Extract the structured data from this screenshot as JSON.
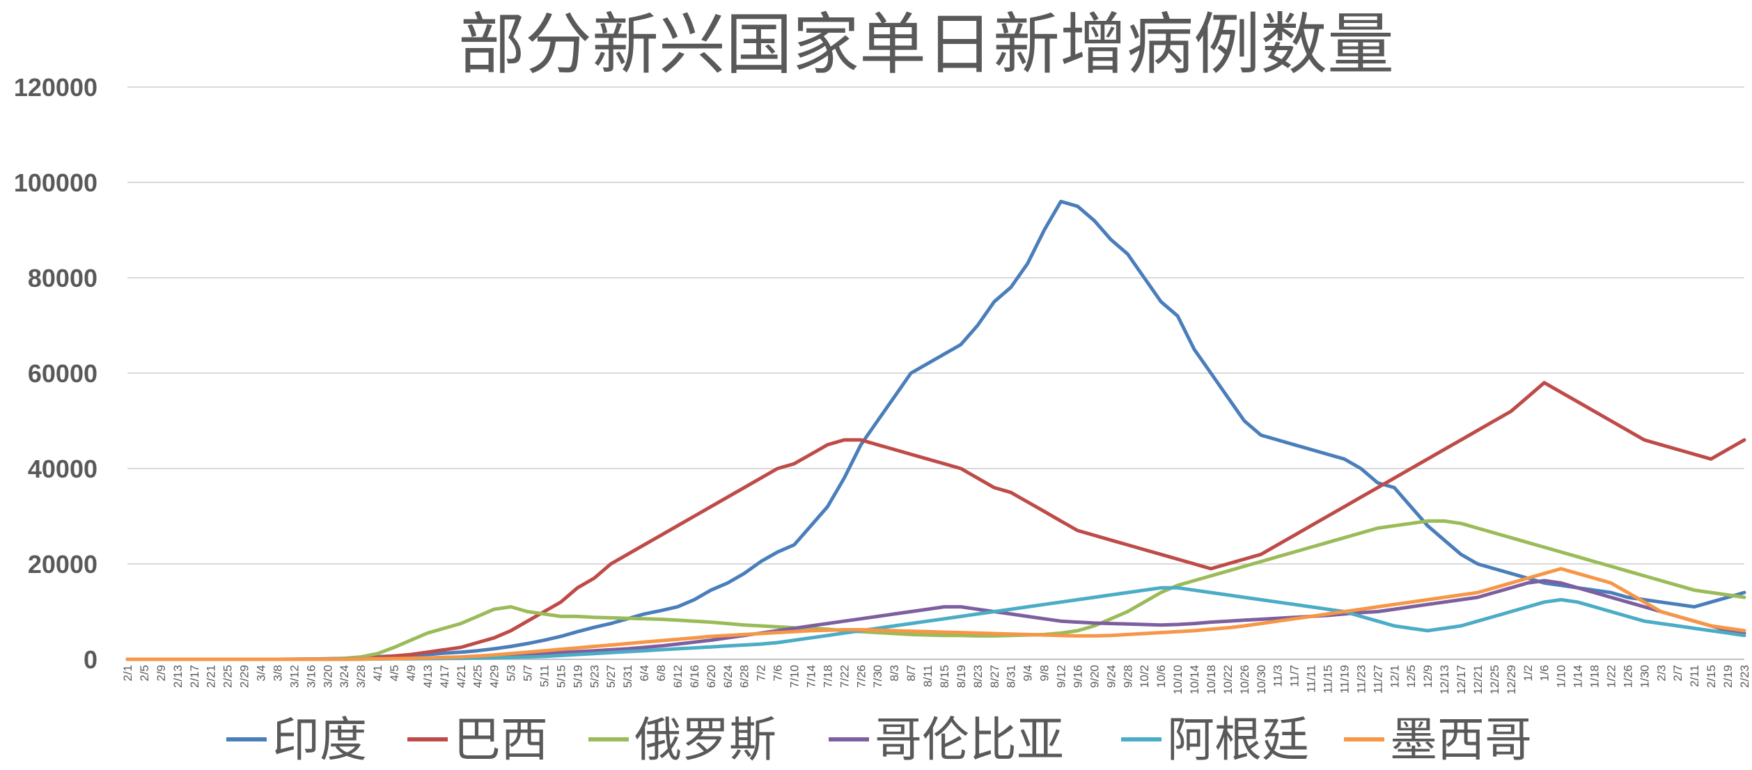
{
  "chart_data": {
    "type": "line",
    "title": "部分新兴国家单日新增病例数量",
    "xlabel": "",
    "ylabel": "",
    "ylim": [
      0,
      120000
    ],
    "y_ticks": [
      "0",
      "20000",
      "40000",
      "60000",
      "80000",
      "100000",
      "120000"
    ],
    "grid": true,
    "legend_position": "bottom",
    "x": [
      "2/1",
      "2/5",
      "2/9",
      "2/13",
      "2/17",
      "2/21",
      "2/25",
      "2/29",
      "3/4",
      "3/8",
      "3/12",
      "3/16",
      "3/20",
      "3/24",
      "3/28",
      "4/1",
      "4/5",
      "4/9",
      "4/13",
      "4/17",
      "4/21",
      "4/25",
      "4/29",
      "5/3",
      "5/7",
      "5/11",
      "5/15",
      "5/19",
      "5/23",
      "5/27",
      "5/31",
      "6/4",
      "6/8",
      "6/12",
      "6/16",
      "6/20",
      "6/24",
      "6/28",
      "7/2",
      "7/6",
      "7/10",
      "7/14",
      "7/18",
      "7/22",
      "7/26",
      "7/30",
      "8/3",
      "8/7",
      "8/11",
      "8/15",
      "8/19",
      "8/23",
      "8/27",
      "8/31",
      "9/4",
      "9/8",
      "9/12",
      "9/16",
      "9/20",
      "9/24",
      "9/28",
      "10/2",
      "10/6",
      "10/10",
      "10/14",
      "10/18",
      "10/22",
      "10/26",
      "10/30",
      "11/3",
      "11/7",
      "11/11",
      "11/15",
      "11/19",
      "11/23",
      "11/27",
      "12/1",
      "12/5",
      "12/9",
      "12/13",
      "12/17",
      "12/21",
      "12/25",
      "12/29",
      "1/2",
      "1/6",
      "1/10",
      "1/14",
      "1/18",
      "1/22",
      "1/26",
      "1/30",
      "2/3",
      "2/7",
      "2/11",
      "2/15",
      "2/19",
      "2/23"
    ],
    "series": [
      {
        "name": "印度",
        "color": "#4a7ebb",
        "values": [
          0,
          0,
          0,
          0,
          0,
          0,
          0,
          0,
          0,
          0,
          10,
          50,
          100,
          200,
          400,
          550,
          700,
          800,
          1000,
          1300,
          1500,
          1800,
          2200,
          2700,
          3300,
          4000,
          4800,
          5800,
          6700,
          7500,
          8500,
          9500,
          10200,
          11000,
          12500,
          14500,
          16000,
          18000,
          20500,
          22500,
          24000,
          28000,
          32000,
          38000,
          45000,
          50000,
          55000,
          60000,
          62000,
          64000,
          66000,
          70000,
          75000,
          78000,
          83000,
          90000,
          96000,
          95000,
          92000,
          88000,
          85000,
          80000,
          75000,
          72000,
          65000,
          60000,
          55000,
          50000,
          47000,
          46000,
          45000,
          44000,
          43000,
          42000,
          40000,
          37000,
          36000,
          32000,
          28000,
          25000,
          22000,
          20000,
          19000,
          18000,
          17000,
          16000,
          15500,
          15000,
          14500,
          14000,
          13000,
          12500,
          12000,
          11500,
          11000,
          12000,
          13000,
          14000
        ]
      },
      {
        "name": "巴西",
        "color": "#be4b48",
        "values": [
          0,
          0,
          0,
          0,
          0,
          0,
          0,
          0,
          0,
          0,
          10,
          30,
          80,
          150,
          250,
          400,
          700,
          1000,
          1500,
          2000,
          2500,
          3500,
          4500,
          6000,
          8000,
          10000,
          12000,
          15000,
          17000,
          20000,
          22000,
          24000,
          26000,
          28000,
          30000,
          32000,
          34000,
          36000,
          38000,
          40000,
          41000,
          43000,
          45000,
          46000,
          46000,
          45000,
          44000,
          43000,
          42000,
          41000,
          40000,
          38000,
          36000,
          35000,
          33000,
          31000,
          29000,
          27000,
          26000,
          25000,
          24000,
          23000,
          22000,
          21000,
          20000,
          19000,
          20000,
          21000,
          22000,
          24000,
          26000,
          28000,
          30000,
          32000,
          34000,
          36000,
          38000,
          40000,
          42000,
          44000,
          46000,
          48000,
          50000,
          52000,
          55000,
          58000,
          56000,
          54000,
          52000,
          50000,
          48000,
          46000,
          45000,
          44000,
          43000,
          42000,
          44000,
          46000
        ]
      },
      {
        "name": "俄罗斯",
        "color": "#9bbb59",
        "values": [
          0,
          0,
          0,
          0,
          0,
          0,
          0,
          0,
          0,
          0,
          0,
          10,
          50,
          200,
          500,
          1200,
          2500,
          4000,
          5500,
          6500,
          7500,
          9000,
          10500,
          11000,
          10000,
          9500,
          9000,
          9000,
          8800,
          8700,
          8600,
          8500,
          8400,
          8200,
          8000,
          7800,
          7500,
          7200,
          7000,
          6800,
          6600,
          6500,
          6300,
          6000,
          5800,
          5600,
          5400,
          5200,
          5100,
          5000,
          5000,
          4900,
          4900,
          5000,
          5100,
          5200,
          5500,
          6000,
          7000,
          8500,
          10000,
          12000,
          14000,
          15500,
          16500,
          17500,
          18500,
          19500,
          20500,
          21500,
          22500,
          23500,
          24500,
          25500,
          26500,
          27500,
          28000,
          28500,
          29000,
          29000,
          28500,
          27500,
          26500,
          25500,
          24500,
          23500,
          22500,
          21500,
          20500,
          19500,
          18500,
          17500,
          16500,
          15500,
          14500,
          14000,
          13500,
          13000
        ]
      },
      {
        "name": "哥伦比亚",
        "color": "#7d5fa0",
        "values": [
          0,
          0,
          0,
          0,
          0,
          0,
          0,
          0,
          0,
          0,
          0,
          10,
          20,
          50,
          80,
          100,
          150,
          200,
          250,
          300,
          400,
          500,
          600,
          800,
          1000,
          1200,
          1400,
          1600,
          1800,
          2000,
          2200,
          2500,
          2800,
          3200,
          3600,
          4000,
          4500,
          5000,
          5500,
          6000,
          6500,
          7000,
          7500,
          8000,
          8500,
          9000,
          9500,
          10000,
          10500,
          11000,
          11000,
          10500,
          10000,
          9500,
          9000,
          8500,
          8000,
          7800,
          7600,
          7500,
          7400,
          7300,
          7200,
          7300,
          7500,
          7800,
          8000,
          8200,
          8400,
          8600,
          8800,
          9000,
          9200,
          9500,
          9800,
          10000,
          10500,
          11000,
          11500,
          12000,
          12500,
          13000,
          14000,
          15000,
          16000,
          16500,
          16000,
          15000,
          14000,
          13000,
          12000,
          11000,
          10000,
          9000,
          8000,
          7000,
          6000,
          5500
        ]
      },
      {
        "name": "阿根廷",
        "color": "#4bacc6",
        "values": [
          0,
          0,
          0,
          0,
          0,
          0,
          0,
          0,
          0,
          0,
          0,
          10,
          20,
          30,
          50,
          80,
          100,
          120,
          150,
          180,
          200,
          250,
          300,
          400,
          500,
          600,
          800,
          1000,
          1200,
          1400,
          1600,
          1800,
          2000,
          2200,
          2400,
          2600,
          2800,
          3000,
          3200,
          3500,
          4000,
          4500,
          5000,
          5500,
          6000,
          6500,
          7000,
          7500,
          8000,
          8500,
          9000,
          9500,
          10000,
          10500,
          11000,
          11500,
          12000,
          12500,
          13000,
          13500,
          14000,
          14500,
          15000,
          15000,
          14500,
          14000,
          13500,
          13000,
          12500,
          12000,
          11500,
          11000,
          10500,
          10000,
          9000,
          8000,
          7000,
          6500,
          6000,
          6500,
          7000,
          8000,
          9000,
          10000,
          11000,
          12000,
          12500,
          12000,
          11000,
          10000,
          9000,
          8000,
          7500,
          7000,
          6500,
          6000,
          5500,
          5000
        ]
      },
      {
        "name": "墨西哥",
        "color": "#f79646",
        "values": [
          0,
          0,
          0,
          0,
          0,
          0,
          0,
          0,
          0,
          0,
          0,
          5,
          10,
          20,
          50,
          100,
          150,
          200,
          300,
          400,
          500,
          700,
          900,
          1200,
          1500,
          1800,
          2100,
          2400,
          2700,
          3000,
          3300,
          3600,
          3900,
          4200,
          4500,
          4800,
          5000,
          5200,
          5400,
          5600,
          5800,
          6000,
          6100,
          6200,
          6200,
          6100,
          6000,
          5900,
          5800,
          5700,
          5600,
          5500,
          5400,
          5300,
          5200,
          5100,
          5000,
          4900,
          4900,
          5000,
          5200,
          5400,
          5600,
          5800,
          6000,
          6300,
          6600,
          7000,
          7500,
          8000,
          8500,
          9000,
          9500,
          10000,
          10500,
          11000,
          11500,
          12000,
          12500,
          13000,
          13500,
          14000,
          15000,
          16000,
          17000,
          18000,
          19000,
          18000,
          17000,
          16000,
          14000,
          12000,
          10000,
          9000,
          8000,
          7000,
          6500,
          6000
        ]
      }
    ]
  }
}
